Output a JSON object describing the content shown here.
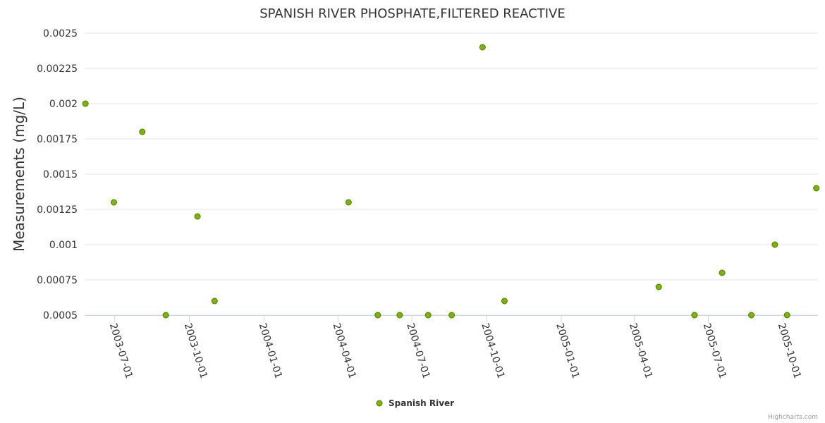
{
  "chart_data": {
    "type": "scatter",
    "title": "SPANISH RIVER PHOSPHATE,FILTERED REACTIVE",
    "xlabel": "",
    "ylabel": "Measurements (mg/L)",
    "ylim": [
      0.0005,
      0.0025
    ],
    "xlim": [
      "2003-05-25",
      "2005-11-13"
    ],
    "y_ticks": [
      "0.0005",
      "0.00075",
      "0.001",
      "0.00125",
      "0.0015",
      "0.00175",
      "0.002",
      "0.00225",
      "0.0025"
    ],
    "x_ticks": [
      "2003-07-01",
      "2003-10-01",
      "2004-01-01",
      "2004-04-01",
      "2004-07-01",
      "2004-10-01",
      "2005-01-01",
      "2005-04-01",
      "2005-07-01",
      "2005-10-01"
    ],
    "grid": true,
    "legend_position": "bottom-center",
    "series": [
      {
        "name": "Spanish River",
        "color": "#7cb500",
        "points": [
          {
            "x": "2003-05-26",
            "y": 0.002
          },
          {
            "x": "2003-06-30",
            "y": 0.0013
          },
          {
            "x": "2003-08-04",
            "y": 0.0018
          },
          {
            "x": "2003-09-02",
            "y": 0.0005
          },
          {
            "x": "2003-10-11",
            "y": 0.0012
          },
          {
            "x": "2003-11-01",
            "y": 0.0006
          },
          {
            "x": "2004-04-14",
            "y": 0.0013
          },
          {
            "x": "2004-05-20",
            "y": 0.0005
          },
          {
            "x": "2004-06-16",
            "y": 0.0005
          },
          {
            "x": "2004-07-21",
            "y": 0.0005
          },
          {
            "x": "2004-08-19",
            "y": 0.0005
          },
          {
            "x": "2004-09-26",
            "y": 0.0024
          },
          {
            "x": "2004-10-23",
            "y": 0.0006
          },
          {
            "x": "2005-05-01",
            "y": 0.0007
          },
          {
            "x": "2005-06-14",
            "y": 0.0005
          },
          {
            "x": "2005-07-18",
            "y": 0.0008
          },
          {
            "x": "2005-08-23",
            "y": 0.0005
          },
          {
            "x": "2005-09-21",
            "y": 0.001
          },
          {
            "x": "2005-10-06",
            "y": 0.0005
          },
          {
            "x": "2005-11-11",
            "y": 0.0014
          }
        ]
      }
    ]
  },
  "credits": "Highcharts.com"
}
